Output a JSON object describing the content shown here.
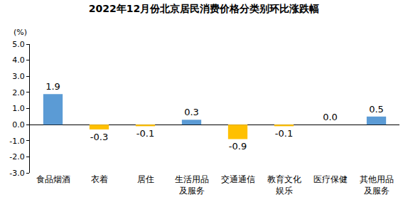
{
  "chart_data": {
    "type": "bar",
    "title": "2022年12月份北京居民消费价格分类别环比涨跌幅",
    "y_label": "(%)",
    "categories": [
      "食品烟酒",
      "衣着",
      "居住",
      "生活用品及服务",
      "交通通信",
      "教育文化娱乐",
      "医疗保健",
      "其他用品及服务"
    ],
    "values": [
      1.9,
      -0.3,
      -0.1,
      0.3,
      -0.9,
      -0.1,
      0,
      0.5
    ],
    "value_labels": [
      "1.9",
      "-0.3",
      "-0.1",
      "0.3",
      "-0.9",
      "-0.1",
      "0.0",
      "0.5"
    ],
    "colors": [
      "#5b9bd5",
      "#ffc000",
      "#ffc000",
      "#5b9bd5",
      "#ffc000",
      "#ffc000",
      "#5b9bd5",
      "#5b9bd5"
    ],
    "ylim": [
      -3,
      5
    ],
    "yticks": [
      {
        "value": -3,
        "label": "-3.0"
      },
      {
        "value": -2,
        "label": "-2.0"
      },
      {
        "value": -1,
        "label": "-1.0"
      },
      {
        "value": 0,
        "label": "0.0"
      },
      {
        "value": 1,
        "label": "1.0"
      },
      {
        "value": 2,
        "label": "2.0"
      },
      {
        "value": 3,
        "label": "3.0"
      },
      {
        "value": 4,
        "label": "4.0"
      },
      {
        "value": 5,
        "label": "5.0"
      }
    ],
    "grid": false,
    "data_labels": true
  }
}
